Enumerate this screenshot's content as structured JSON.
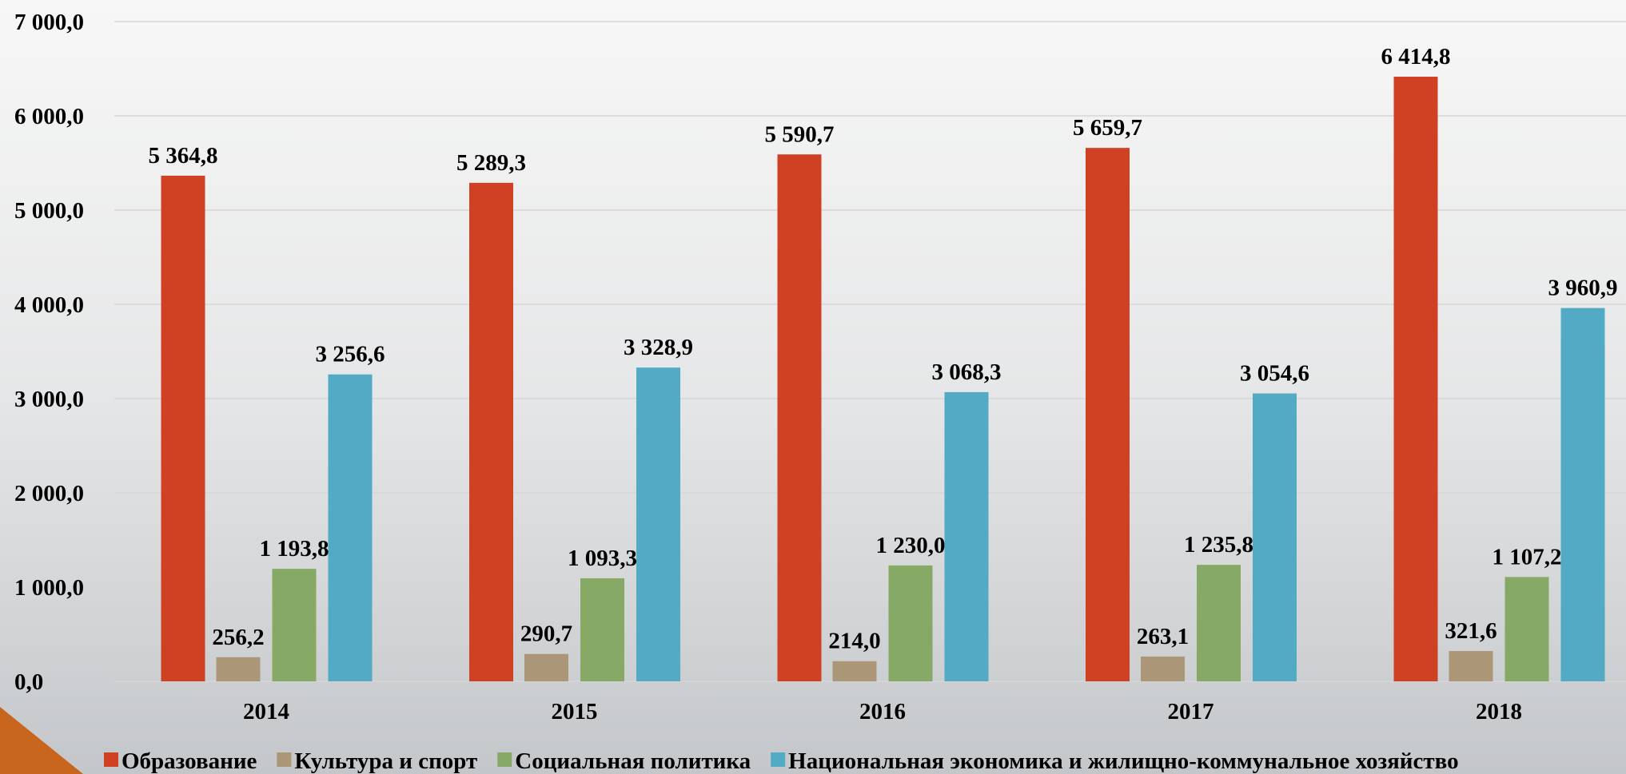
{
  "chart_data": {
    "type": "bar",
    "categories": [
      "2014",
      "2015",
      "2016",
      "2017",
      "2018"
    ],
    "series": [
      {
        "name": "Образование",
        "color": "#cf4122",
        "values": [
          5364.8,
          5289.3,
          5590.7,
          5659.7,
          6414.8
        ],
        "value_labels": [
          "5 364,8",
          "5 289,3",
          "5 590,7",
          "5 659,7",
          "6 414,8"
        ]
      },
      {
        "name": "Культура и спорт",
        "color": "#ab9778",
        "values": [
          256.2,
          290.7,
          214.0,
          263.1,
          321.6
        ],
        "value_labels": [
          "256,2",
          "290,7",
          "214,0",
          "263,1",
          "321,6"
        ]
      },
      {
        "name": "Социальная политика",
        "color": "#86aa66",
        "values": [
          1193.8,
          1093.3,
          1230.0,
          1235.8,
          1107.2
        ],
        "value_labels": [
          "1 193,8",
          "1 093,3",
          "1 230,0",
          "1 235,8",
          "1 107,2"
        ]
      },
      {
        "name": "Национальная экономика и жилищно-коммунальное хозяйство",
        "color": "#52aac4",
        "values": [
          3256.6,
          3328.9,
          3068.3,
          3054.6,
          3960.9
        ],
        "value_labels": [
          "3 256,6",
          "3 328,9",
          "3 068,3",
          "3 054,6",
          "3 960,9"
        ]
      }
    ],
    "ylim": [
      0,
      7000
    ],
    "yticks": [
      {
        "value": 0,
        "label": "0,0"
      },
      {
        "value": 1000,
        "label": "1 000,0"
      },
      {
        "value": 2000,
        "label": "2 000,0"
      },
      {
        "value": 3000,
        "label": "3 000,0"
      },
      {
        "value": 4000,
        "label": "4 000,0"
      },
      {
        "value": 5000,
        "label": "5 000,0"
      },
      {
        "value": 6000,
        "label": "6 000,0"
      },
      {
        "value": 7000,
        "label": "7 000,0"
      }
    ],
    "grid": true,
    "legend": "bottom"
  }
}
